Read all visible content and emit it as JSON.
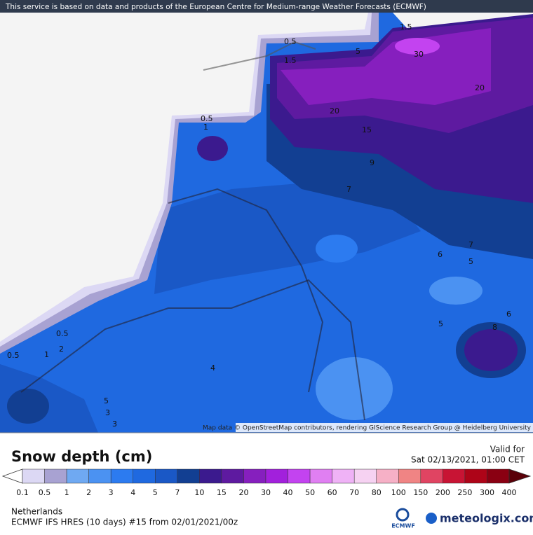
{
  "header": {
    "notice": "This service is based on data and products of the European Centre for Medium-range Weather Forecasts (ECMWF)"
  },
  "map": {
    "attribution": "Map data © OpenStreetMap contributors, rendering GIScience Research Group @ Heidelberg University",
    "contour_labels": [
      "0.5",
      "1",
      "2",
      "3",
      "4",
      "5",
      "3",
      "0.5",
      "1",
      "0.5",
      "1.5",
      "0.5",
      "1.5",
      "5",
      "30",
      "20",
      "20",
      "15",
      "9",
      "7",
      "6",
      "5",
      "7",
      "5",
      "6",
      "8"
    ]
  },
  "title": "Snow depth (cm)",
  "valid": {
    "label": "Valid for",
    "time": "Sat 02/13/2021, 01:00 CET"
  },
  "legend": {
    "labels": [
      "0.1",
      "0.5",
      "1",
      "2",
      "3",
      "4",
      "5",
      "7",
      "10",
      "15",
      "20",
      "30",
      "40",
      "50",
      "60",
      "70",
      "80",
      "100",
      "150",
      "200",
      "250",
      "300",
      "400"
    ],
    "colors": [
      "#ffffff",
      "#dcd8f4",
      "#a8a2d2",
      "#6fa9f2",
      "#4b92f2",
      "#2c7bf0",
      "#1f69e0",
      "#1a58c6",
      "#123f92",
      "#3b1a8e",
      "#5e1aa0",
      "#861fbe",
      "#a220dc",
      "#c343f0",
      "#e07ff2",
      "#efb2f6",
      "#f6d2f2",
      "#f6b0c6",
      "#f08484",
      "#e04462",
      "#c81434",
      "#ae0418",
      "#8a0012",
      "#5a0008"
    ]
  },
  "footer": {
    "region": "Netherlands",
    "model": "ECMWF IFS HRES (10 days) #15 from  02/01/2021/00z",
    "ecmwf": "ECMWF",
    "brand": "meteologix.com"
  }
}
